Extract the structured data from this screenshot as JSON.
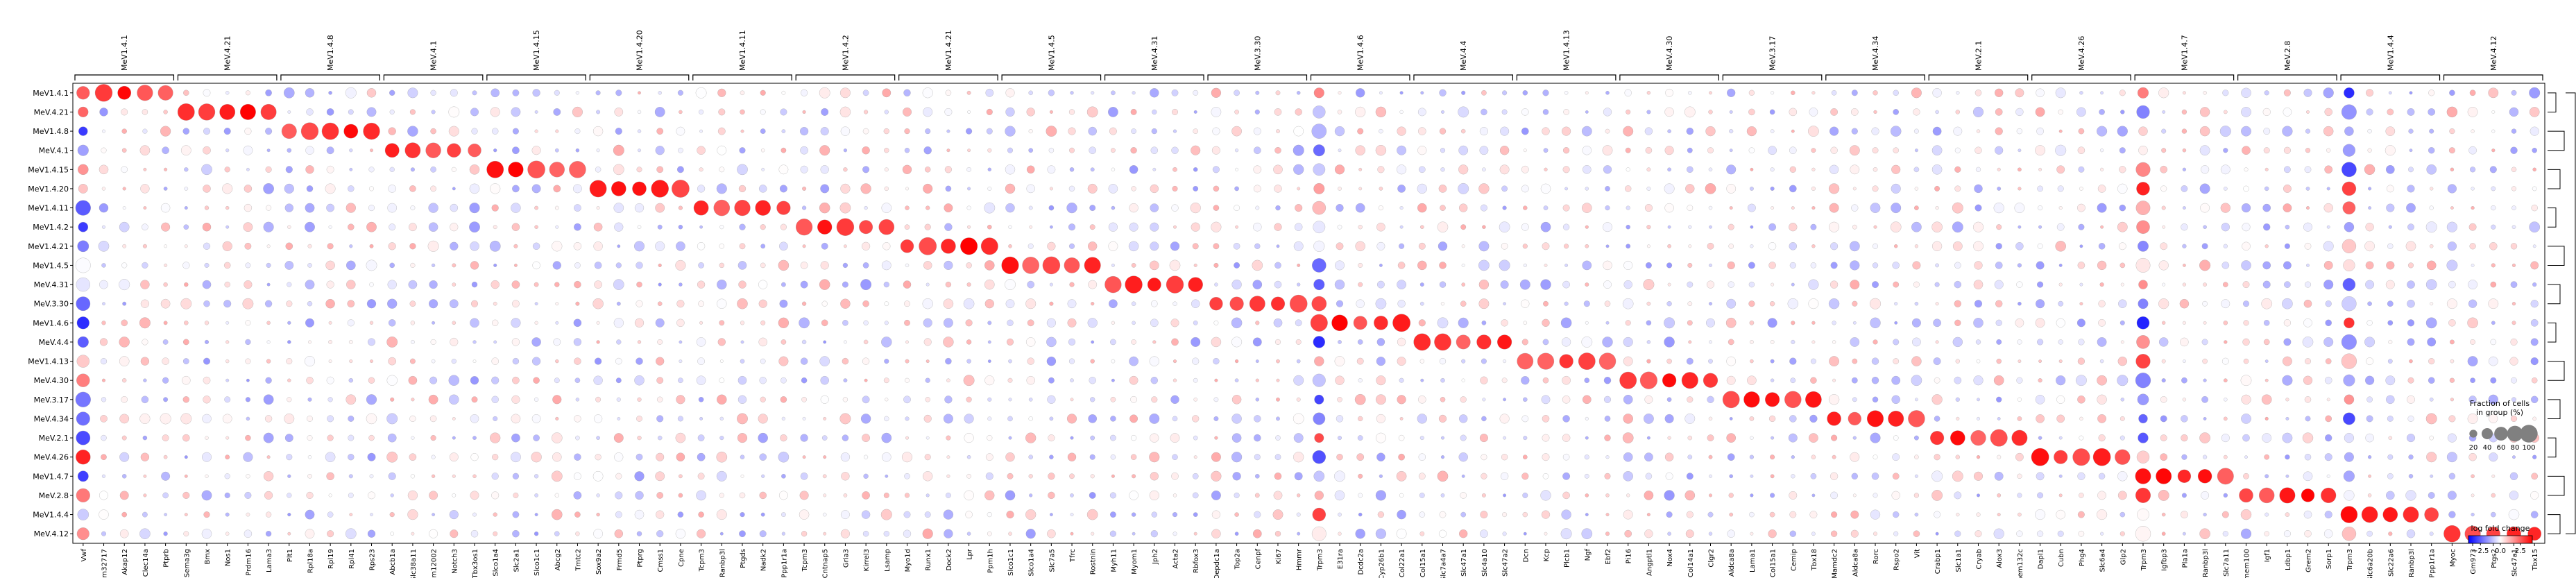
{
  "chart_data": {
    "type": "dotplot",
    "title": "",
    "rows": [
      "MeV1.4.1",
      "MeV.4.21",
      "MeV1.4.8",
      "MeV.4.1",
      "MeV1.4.15",
      "MeV1.4.20",
      "MeV1.4.11",
      "MeV1.4.2",
      "MeV1.4.21",
      "MeV1.4.5",
      "MeV.4.31",
      "MeV.3.30",
      "MeV1.4.6",
      "MeV.4.4",
      "MeV1.4.13",
      "MeV.4.30",
      "MeV.3.17",
      "MeV.4.34",
      "MeV.2.1",
      "MeV.4.26",
      "MeV1.4.7",
      "MeV.2.8",
      "MeV1.4.4",
      "MeV.4.12"
    ],
    "groups": [
      {
        "label": "MeV1.4.1",
        "genes": [
          "Vwf",
          "Gm32717",
          "Akap12",
          "Clec14a",
          "Ptprb"
        ]
      },
      {
        "label": "MeV.4.21",
        "genes": [
          "Sema3g",
          "Bmx",
          "Nos1",
          "Prdm16",
          "Lama3"
        ]
      },
      {
        "label": "MeV1.4.8",
        "genes": [
          "Plt1",
          "Rpl18a",
          "Rpl19",
          "Rpl41",
          "Rps23"
        ]
      },
      {
        "label": "MeV.4.1",
        "genes": [
          "Abcb1a",
          "Slc38a11",
          "Gm12002",
          "Notch3",
          "Tbx3os1"
        ]
      },
      {
        "label": "MeV1.4.15",
        "genes": [
          "Slco1a4",
          "Slc2a1",
          "Slco1c1",
          "Abcg2",
          "Tmtc2"
        ]
      },
      {
        "label": "MeV1.4.20",
        "genes": [
          "Sox9a2",
          "Frmd5",
          "Ptprg",
          "Cmss1",
          "Cpne"
        ]
      },
      {
        "label": "MeV1.4.11",
        "genes": [
          "Tcpm3",
          "Ranbp3l",
          "Ptgds",
          "Nadk2",
          "Ppp1r1a"
        ]
      },
      {
        "label": "MeV1.4.2",
        "genes": [
          "Tcpm3",
          "Cntnap5",
          "Gria3",
          "Kirrel3",
          "Lsamp"
        ]
      },
      {
        "label": "MeV1.4.21",
        "genes": [
          "Myo1d",
          "Runx1",
          "Dock2",
          "Lpr",
          "Ppm1h"
        ]
      },
      {
        "label": "MeV1.4.5",
        "genes": [
          "Slco1c1",
          "Slco1a4",
          "Slc7a5",
          "Tfrc",
          "Rostnin"
        ]
      },
      {
        "label": "MeV.4.31",
        "genes": [
          "Myh11",
          "Myom1",
          "Jph2",
          "Acta2",
          "Rbfox3"
        ]
      },
      {
        "label": "MeV.3.30",
        "genes": [
          "Depdc1a",
          "Top2a",
          "Cenpf",
          "Ki67",
          "Hmmr"
        ]
      },
      {
        "label": "MeV1.4.6",
        "genes": [
          "Trpm3",
          "E31ra",
          "Dcdc2a",
          "Cyp26b1",
          "Col22a1"
        ]
      },
      {
        "label": "MeV.4.4",
        "genes": [
          "Col15a1",
          "Slc7a4a7",
          "Slc47a1",
          "Slc4a10",
          "Slc47a2"
        ]
      },
      {
        "label": "MeV1.4.13",
        "genes": [
          "Dcn",
          "Kcp",
          "Plcb1",
          "Ngf",
          "Ebf2"
        ]
      },
      {
        "label": "MeV.4.30",
        "genes": [
          "Pi16",
          "Angptl1",
          "Nox4",
          "Col14a1",
          "Clgr2"
        ]
      },
      {
        "label": "MeV.3.17",
        "genes": [
          "Aldca8a",
          "Lama1",
          "Col15a1",
          "Cemip",
          "Tbx18"
        ]
      },
      {
        "label": "MeV.4.34",
        "genes": [
          "Mamdc2",
          "Aldca8a",
          "Rorc",
          "Rspo2",
          "Vit"
        ]
      },
      {
        "label": "MeV.2.1",
        "genes": [
          "Crabp1",
          "Slc1a1",
          "Cryab",
          "Alox3",
          "Tmem132c"
        ]
      },
      {
        "label": "MeV.4.26",
        "genes": [
          "Dapl1",
          "Cubn",
          "Phg4",
          "Slc6a4",
          "Glp2"
        ]
      },
      {
        "label": "MeV1.4.7",
        "genes": [
          "Trpm3",
          "Igfbp3",
          "Pla1a",
          "Ranbp3l",
          "Slc7a11"
        ]
      },
      {
        "label": "MeV.2.8",
        "genes": [
          "Tmem100",
          "Igf1",
          "Ldbp1",
          "Grem2",
          "Sorp1"
        ]
      },
      {
        "label": "MeV1.4.4",
        "genes": [
          "Trpm3",
          "Slc6a20b",
          "Slc22a6",
          "Ranbp3l",
          "Ppp1r1a"
        ]
      },
      {
        "label": "MeV.4.12",
        "genes": [
          "Myoc",
          "Gm973",
          "Ptgs2",
          "Slc47a1",
          "Tbx15"
        ]
      }
    ],
    "colorbar": {
      "title": "log fold change",
      "ticks": [
        -2.5,
        0.0,
        2.5
      ],
      "range": [
        -4,
        4
      ],
      "colors": [
        "#0000ff",
        "#ffffff",
        "#ff0000"
      ]
    },
    "size_legend": {
      "title_line1": "Fraction of cells",
      "title_line2": "in group (%)",
      "ticks": [
        20,
        40,
        60,
        80,
        100
      ]
    },
    "dendrogram": true
  }
}
